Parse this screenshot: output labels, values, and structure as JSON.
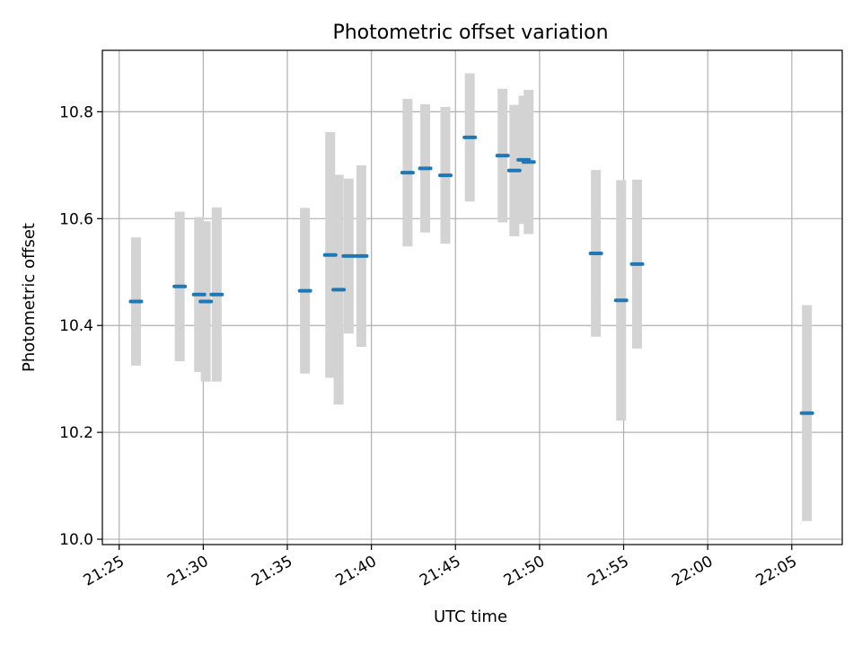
{
  "chart_data": {
    "type": "scatter",
    "title": "Photometric offset variation",
    "xlabel": "UTC time",
    "ylabel": "Photometric offset",
    "xlim": [
      "21:24:00",
      "22:08:00"
    ],
    "ylim": [
      9.99,
      10.915
    ],
    "x_ticks": [
      "21:25",
      "21:30",
      "21:35",
      "21:40",
      "21:45",
      "21:50",
      "21:55",
      "22:00",
      "22:05"
    ],
    "y_ticks": [
      "10.0",
      "10.2",
      "10.4",
      "10.6",
      "10.8"
    ],
    "grid": true,
    "marker_color": "#1f77b4",
    "errorbar_color": "#d3d3d3",
    "series": [
      {
        "points": [
          {
            "time": "21:26:00",
            "y": 10.445,
            "err": 0.12
          },
          {
            "time": "21:28:36",
            "y": 10.473,
            "err": 0.14
          },
          {
            "time": "21:29:45",
            "y": 10.458,
            "err": 0.145
          },
          {
            "time": "21:30:09",
            "y": 10.445,
            "err": 0.15
          },
          {
            "time": "21:30:48",
            "y": 10.458,
            "err": 0.163
          },
          {
            "time": "21:36:03",
            "y": 10.465,
            "err": 0.155
          },
          {
            "time": "21:37:33",
            "y": 10.532,
            "err": 0.23
          },
          {
            "time": "21:38:03",
            "y": 10.467,
            "err": 0.215
          },
          {
            "time": "21:38:39",
            "y": 10.53,
            "err": 0.145
          },
          {
            "time": "21:39:24",
            "y": 10.53,
            "err": 0.17
          },
          {
            "time": "21:42:09",
            "y": 10.686,
            "err": 0.138
          },
          {
            "time": "21:43:12",
            "y": 10.694,
            "err": 0.12
          },
          {
            "time": "21:44:24",
            "y": 10.681,
            "err": 0.128
          },
          {
            "time": "21:45:51",
            "y": 10.752,
            "err": 0.12
          },
          {
            "time": "21:47:48",
            "y": 10.718,
            "err": 0.125
          },
          {
            "time": "21:48:30",
            "y": 10.69,
            "err": 0.123
          },
          {
            "time": "21:49:03",
            "y": 10.71,
            "err": 0.12
          },
          {
            "time": "21:49:21",
            "y": 10.706,
            "err": 0.135
          },
          {
            "time": "21:53:21",
            "y": 10.535,
            "err": 0.156
          },
          {
            "time": "21:54:51",
            "y": 10.447,
            "err": 0.225
          },
          {
            "time": "21:55:48",
            "y": 10.515,
            "err": 0.158
          },
          {
            "time": "22:05:54",
            "y": 10.236,
            "err": 0.202
          }
        ]
      }
    ]
  }
}
